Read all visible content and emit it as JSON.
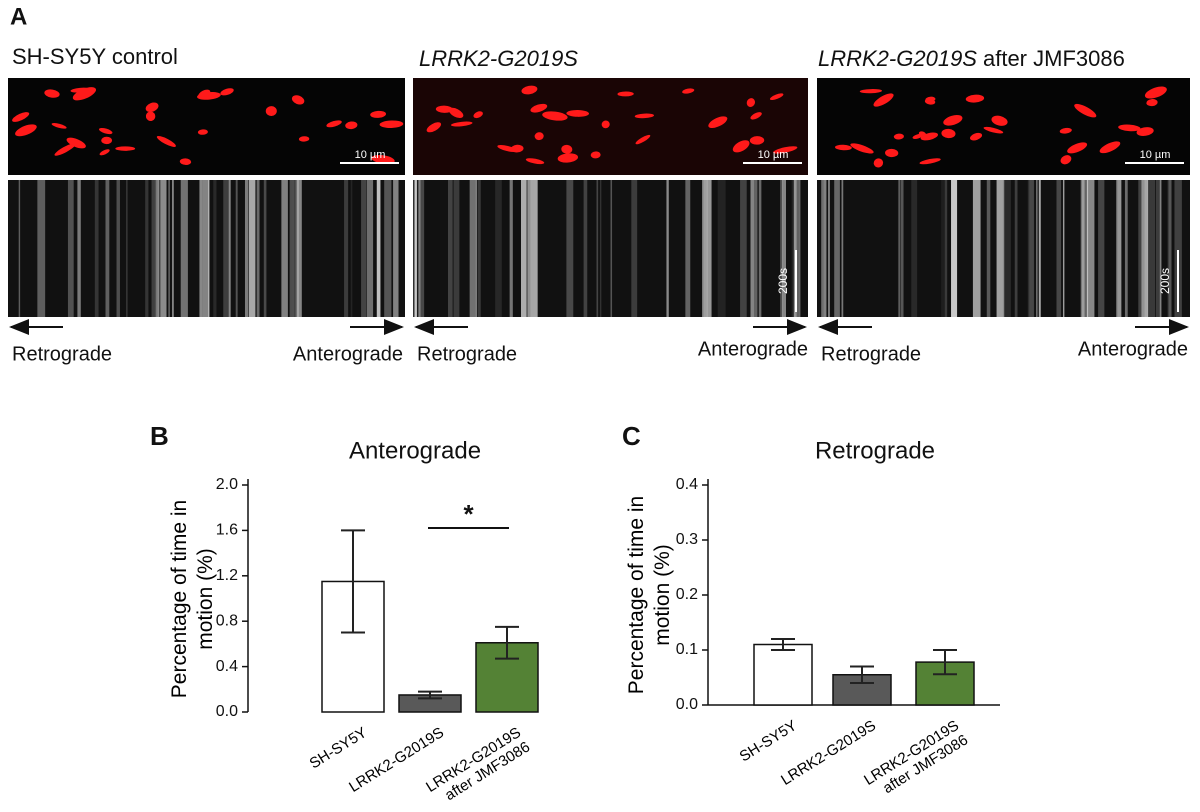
{
  "panel_a": {
    "label": "A",
    "columns": [
      {
        "title": "SH-SY5Y control",
        "scale_bar": "10 µm",
        "left_label": "Retrograde",
        "right_label": "Anterograde"
      },
      {
        "title": "LRRK2-G2019S",
        "scale_bar": "10 µm",
        "time_bar": "200s",
        "left_label": "Retrograde",
        "right_label": "Anterograde"
      },
      {
        "title_italic": "LRRK2-G2019S",
        "title_suffix": "after JMF3086",
        "scale_bar": "10 µm",
        "time_bar": "200s",
        "left_label": "Retrograde",
        "right_label": "Anterograde"
      }
    ]
  },
  "chart_data": [
    {
      "type": "bar",
      "panel": "B",
      "title": "Anterograde",
      "ylabel": "Percentage of time in motion (%)",
      "categories": [
        "SH-SY5Y",
        "LRRK2-G2019S",
        "LRRK2-G2019S after JMF3086"
      ],
      "values": [
        1.15,
        0.15,
        0.61
      ],
      "errors": [
        0.45,
        0.03,
        0.14
      ],
      "colors": [
        "#ffffff",
        "#595959",
        "#548235"
      ],
      "ylim": [
        0,
        2
      ],
      "yticks": [
        {
          "value": 0,
          "label": "0.0"
        },
        0.4,
        0.8,
        1.2,
        1.6,
        {
          "value": 2,
          "label": "2.0"
        }
      ],
      "annotation": "*"
    },
    {
      "type": "bar",
      "panel": "C",
      "title": "Retrograde",
      "ylabel": "Percentage of time in motion (%)",
      "categories": [
        "SH-SY5Y",
        "LRRK2-G2019S",
        "LRRK2-G2019S after JMF3086"
      ],
      "values": [
        0.11,
        0.055,
        0.078
      ],
      "errors": [
        0.01,
        0.015,
        0.022
      ],
      "colors": [
        "#ffffff",
        "#595959",
        "#548235"
      ],
      "ylim": [
        0,
        0.4
      ],
      "yticks": [
        {
          "value": 0,
          "label": "0.0"
        },
        0.1,
        0.2,
        0.3,
        0.4
      ]
    }
  ]
}
